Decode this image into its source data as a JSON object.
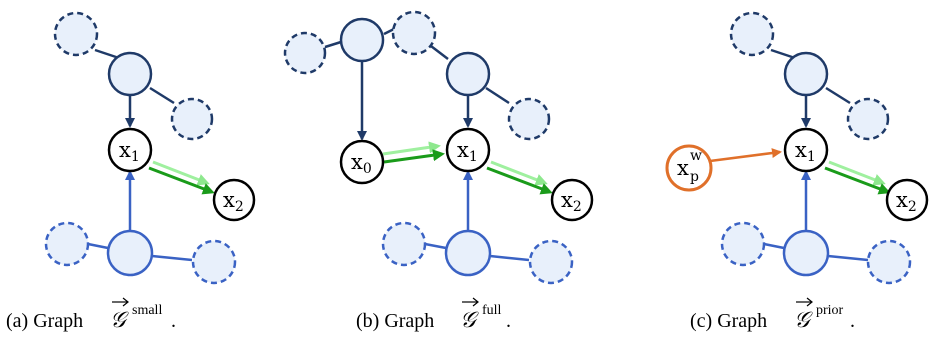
{
  "colors": {
    "dark_blue": "#1f3a68",
    "mid_blue": "#3a62c4",
    "node_fill": "#e8f0fb",
    "green_dark": "#1a9b1a",
    "green_light": "#9ff09f",
    "orange": "#e0702a",
    "black": "#000000"
  },
  "panels": [
    {
      "id": "a",
      "nodes": {
        "x1": {
          "label": "x",
          "sub": "1"
        },
        "x2": {
          "label": "x",
          "sub": "2"
        }
      },
      "caption": {
        "prefix": "(a) Graph",
        "graph_symbol": "𝒢",
        "superscript": "small",
        "suffix": "."
      }
    },
    {
      "id": "b",
      "nodes": {
        "x0": {
          "label": "x",
          "sub": "0"
        },
        "x1": {
          "label": "x",
          "sub": "1"
        },
        "x2": {
          "label": "x",
          "sub": "2"
        }
      },
      "caption": {
        "prefix": "(b) Graph",
        "graph_symbol": "𝒢",
        "superscript": "full",
        "suffix": "."
      }
    },
    {
      "id": "c",
      "nodes": {
        "xp": {
          "label": "x",
          "sub": "p",
          "sup": "w"
        },
        "x1": {
          "label": "x",
          "sub": "1"
        },
        "x2": {
          "label": "x",
          "sub": "2"
        }
      },
      "caption": {
        "prefix": "(c) Graph",
        "graph_symbol": "𝒢",
        "superscript": "prior",
        "suffix": "."
      }
    }
  ]
}
